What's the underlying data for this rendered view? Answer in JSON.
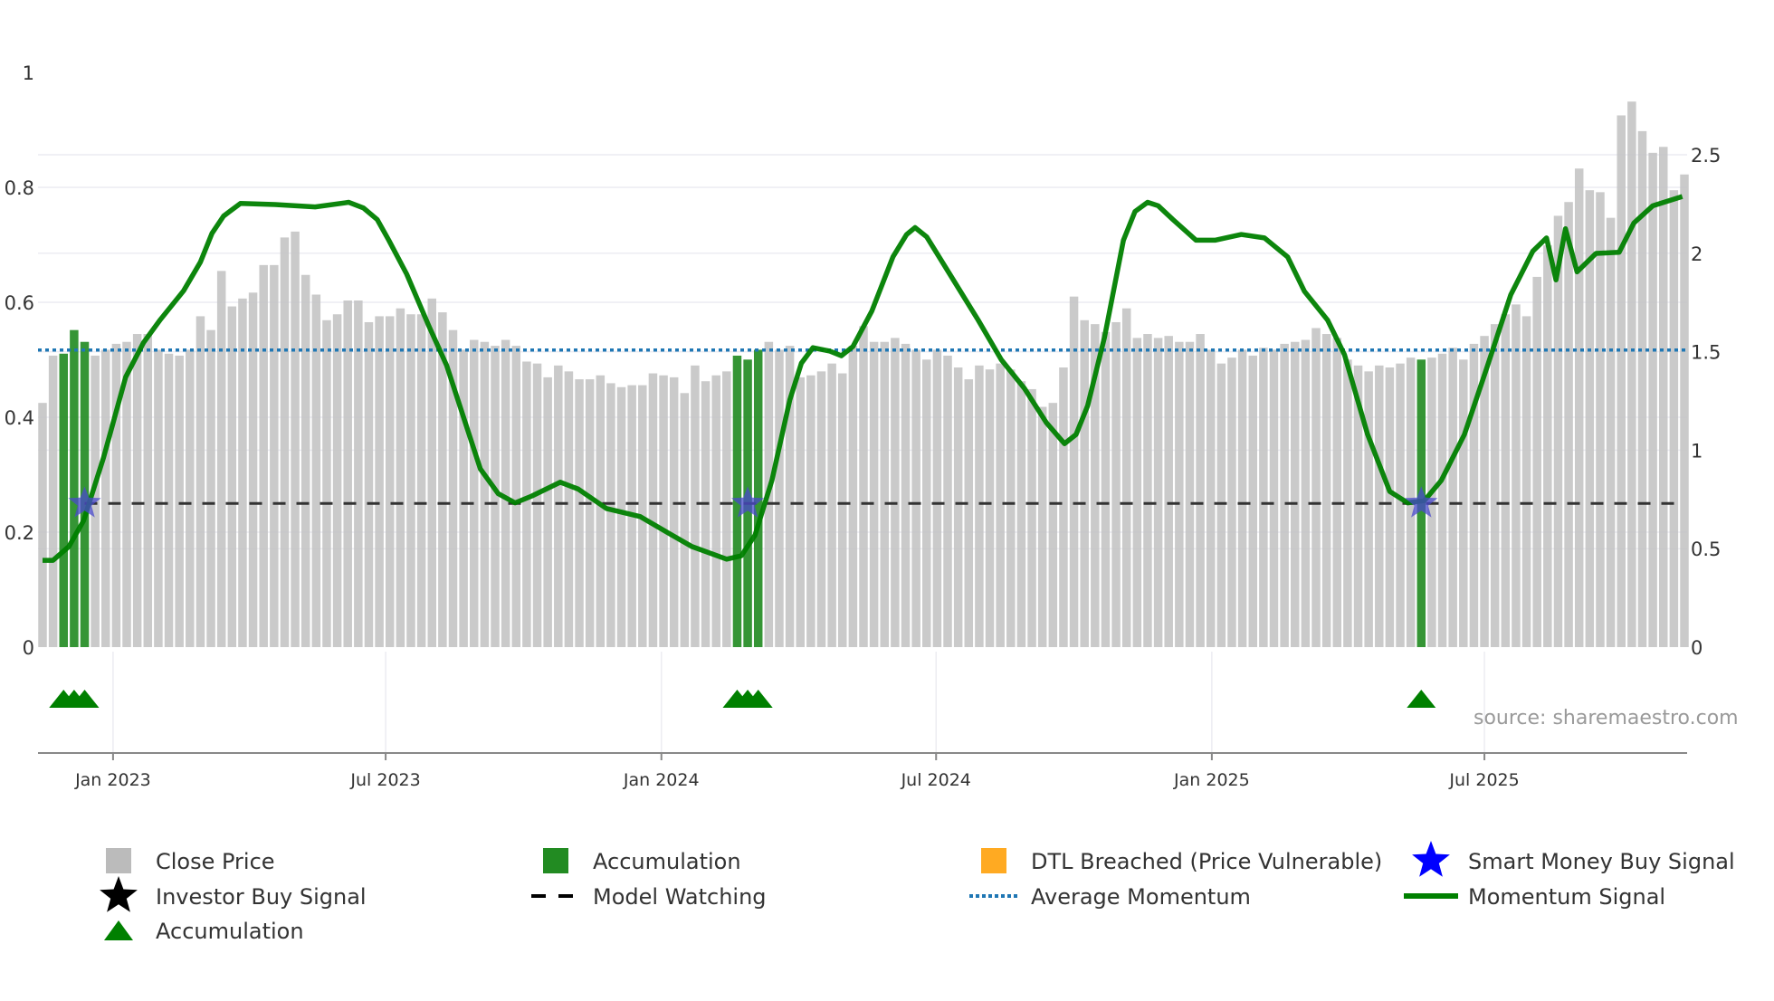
{
  "chart_data": {
    "type": "bar",
    "title": "",
    "xlabel": "",
    "ylabel_left": "",
    "ylabel_right": "",
    "left_axis": {
      "range": [
        0,
        1
      ],
      "ticks": [
        "0",
        "0.2",
        "0.4",
        "0.6",
        "0.8",
        "1"
      ],
      "tick_values": [
        0,
        0.2,
        0.4,
        0.6,
        0.8,
        1
      ]
    },
    "right_axis": {
      "range": [
        0,
        2.92
      ],
      "ticks": [
        "0",
        "0.5",
        "1",
        "1.5",
        "2",
        "2.5"
      ],
      "tick_values": [
        0,
        0.5,
        1,
        1.5,
        2,
        2.5
      ]
    },
    "x_ticks": [
      {
        "label": "Jan 2023",
        "week": 6.7
      },
      {
        "label": "Jul 2023",
        "week": 32.6
      },
      {
        "label": "Jan 2024",
        "week": 58.8
      },
      {
        "label": "Jul 2024",
        "week": 84.9
      },
      {
        "label": "Jan 2025",
        "week": 111.1
      },
      {
        "label": "Jul 2025",
        "week": 137.0
      }
    ],
    "close_price": [
      1.24,
      1.48,
      1.49,
      1.61,
      1.55,
      1.48,
      1.51,
      1.54,
      1.55,
      1.59,
      1.59,
      1.51,
      1.49,
      1.48,
      1.51,
      1.68,
      1.61,
      1.91,
      1.73,
      1.77,
      1.8,
      1.94,
      1.94,
      2.08,
      2.11,
      1.89,
      1.79,
      1.66,
      1.69,
      1.76,
      1.76,
      1.65,
      1.68,
      1.68,
      1.72,
      1.69,
      1.69,
      1.77,
      1.7,
      1.61,
      1.51,
      1.56,
      1.55,
      1.53,
      1.56,
      1.53,
      1.45,
      1.44,
      1.37,
      1.43,
      1.4,
      1.36,
      1.36,
      1.38,
      1.34,
      1.32,
      1.33,
      1.33,
      1.39,
      1.38,
      1.37,
      1.29,
      1.43,
      1.35,
      1.38,
      1.4,
      1.48,
      1.46,
      1.51,
      1.55,
      1.51,
      1.53,
      1.37,
      1.38,
      1.4,
      1.44,
      1.39,
      1.53,
      1.63,
      1.55,
      1.55,
      1.57,
      1.54,
      1.51,
      1.46,
      1.51,
      1.48,
      1.42,
      1.36,
      1.43,
      1.41,
      1.44,
      1.41,
      1.35,
      1.31,
      1.22,
      1.24,
      1.42,
      1.78,
      1.66,
      1.64,
      1.6,
      1.65,
      1.72,
      1.57,
      1.59,
      1.57,
      1.58,
      1.55,
      1.55,
      1.59,
      1.51,
      1.44,
      1.47,
      1.51,
      1.48,
      1.52,
      1.51,
      1.54,
      1.55,
      1.56,
      1.62,
      1.59,
      1.57,
      1.46,
      1.43,
      1.4,
      1.43,
      1.42,
      1.44,
      1.47,
      1.46,
      1.47,
      1.49,
      1.52,
      1.46,
      1.54,
      1.58,
      1.64,
      1.69,
      1.74,
      1.68,
      1.88,
      2.04,
      2.19,
      2.26,
      2.43,
      2.32,
      2.31,
      2.18,
      2.7,
      2.77,
      2.62,
      2.51,
      2.54,
      2.32,
      2.4
    ],
    "accumulation_weeks": [
      2,
      3,
      4,
      66,
      67,
      68,
      131
    ],
    "smart_money_buy_weeks": [
      4,
      67,
      131
    ],
    "signal_level": 0.25,
    "model_watching": {
      "level": 0.25,
      "start_week": 4
    },
    "average_momentum": 0.517,
    "momentum": [
      [
        0,
        0.151
      ],
      [
        1,
        0.151
      ],
      [
        2.5,
        0.175
      ],
      [
        3.9,
        0.22
      ],
      [
        5.8,
        0.33
      ],
      [
        7.9,
        0.47
      ],
      [
        9.6,
        0.53
      ],
      [
        11.2,
        0.57
      ],
      [
        13.4,
        0.62
      ],
      [
        15,
        0.67
      ],
      [
        16.1,
        0.72
      ],
      [
        17.2,
        0.75
      ],
      [
        18.8,
        0.772
      ],
      [
        22.1,
        0.77
      ],
      [
        25.9,
        0.766
      ],
      [
        29.1,
        0.774
      ],
      [
        30.5,
        0.764
      ],
      [
        31.8,
        0.744
      ],
      [
        32.9,
        0.708
      ],
      [
        34.6,
        0.649
      ],
      [
        36.7,
        0.559
      ],
      [
        38.4,
        0.49
      ],
      [
        40,
        0.4
      ],
      [
        41.6,
        0.31
      ],
      [
        43.3,
        0.267
      ],
      [
        44.9,
        0.251
      ],
      [
        46.5,
        0.263
      ],
      [
        49.2,
        0.287
      ],
      [
        50.9,
        0.275
      ],
      [
        53.6,
        0.241
      ],
      [
        56.8,
        0.227
      ],
      [
        59.6,
        0.197
      ],
      [
        61.7,
        0.175
      ],
      [
        65,
        0.153
      ],
      [
        66.4,
        0.159
      ],
      [
        67.7,
        0.195
      ],
      [
        69.3,
        0.29
      ],
      [
        71,
        0.43
      ],
      [
        72.1,
        0.494
      ],
      [
        73.2,
        0.521
      ],
      [
        74.8,
        0.515
      ],
      [
        75.9,
        0.507
      ],
      [
        77,
        0.523
      ],
      [
        78.8,
        0.585
      ],
      [
        80.8,
        0.679
      ],
      [
        82.1,
        0.718
      ],
      [
        82.9,
        0.73
      ],
      [
        84,
        0.714
      ],
      [
        86.2,
        0.649
      ],
      [
        88.9,
        0.569
      ],
      [
        91.1,
        0.5
      ],
      [
        93.3,
        0.45
      ],
      [
        95.4,
        0.39
      ],
      [
        97.1,
        0.354
      ],
      [
        98.2,
        0.37
      ],
      [
        99.3,
        0.42
      ],
      [
        100.9,
        0.539
      ],
      [
        102.7,
        0.708
      ],
      [
        103.8,
        0.758
      ],
      [
        105,
        0.774
      ],
      [
        106,
        0.768
      ],
      [
        107.4,
        0.744
      ],
      [
        109.6,
        0.708
      ],
      [
        111.4,
        0.708
      ],
      [
        113.9,
        0.718
      ],
      [
        116.1,
        0.712
      ],
      [
        118.3,
        0.679
      ],
      [
        119.9,
        0.619
      ],
      [
        122.1,
        0.569
      ],
      [
        123.7,
        0.509
      ],
      [
        125.9,
        0.37
      ],
      [
        128,
        0.271
      ],
      [
        129.7,
        0.251
      ],
      [
        131.3,
        0.255
      ],
      [
        132.9,
        0.29
      ],
      [
        135.1,
        0.37
      ],
      [
        137.3,
        0.49
      ],
      [
        139.5,
        0.613
      ],
      [
        141.6,
        0.689
      ],
      [
        142.9,
        0.712
      ],
      [
        143.8,
        0.639
      ],
      [
        144.7,
        0.728
      ],
      [
        145.8,
        0.653
      ],
      [
        147.6,
        0.685
      ],
      [
        149.8,
        0.687
      ],
      [
        151.2,
        0.738
      ],
      [
        153,
        0.768
      ],
      [
        155.8,
        0.784
      ]
    ],
    "legend": [
      {
        "label": "Close Price",
        "symbol": "square",
        "color": "#bbbbbb"
      },
      {
        "label": "Accumulation",
        "symbol": "square",
        "color": "#228b22"
      },
      {
        "label": "DTL Breached (Price Vulnerable)",
        "symbol": "square",
        "color": "#ffaa22"
      },
      {
        "label": "Smart Money Buy Signal",
        "symbol": "star",
        "color": "#0000ff"
      },
      {
        "label": "Investor Buy Signal",
        "symbol": "star",
        "color": "#000000"
      },
      {
        "label": "Model Watching",
        "symbol": "dash",
        "color": "#000000"
      },
      {
        "label": "Average Momentum",
        "symbol": "dot",
        "color": "#1f77b4"
      },
      {
        "label": "Momentum Signal",
        "symbol": "line",
        "color": "#008000"
      },
      {
        "label": "Accumulation",
        "symbol": "triangle",
        "color": "#008000"
      }
    ],
    "legend_placement": "bottom",
    "colors": {
      "price": "#c4c4c4",
      "accumulation": "#2a8f2a",
      "momentum": "#008000",
      "average": "#1f77b4",
      "watching": "#333333",
      "star": "#4a4acc"
    }
  },
  "source": "source: sharemaestro.com"
}
